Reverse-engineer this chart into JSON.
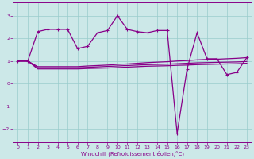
{
  "xlabel": "Windchill (Refroidissement éolien,°C)",
  "bg_color": "#cce8e8",
  "grid_color": "#99cccc",
  "line_color": "#880088",
  "xlim": [
    -0.5,
    23.5
  ],
  "ylim": [
    -2.6,
    3.6
  ],
  "yticks": [
    -2,
    -1,
    0,
    1,
    2,
    3
  ],
  "xticks": [
    0,
    1,
    2,
    3,
    4,
    5,
    6,
    7,
    8,
    9,
    10,
    11,
    12,
    13,
    14,
    15,
    16,
    17,
    18,
    19,
    20,
    21,
    22,
    23
  ],
  "series_smooth1": {
    "x": [
      0,
      1,
      2,
      3,
      4,
      5,
      6,
      7,
      8,
      9,
      10,
      11,
      12,
      13,
      14,
      15,
      16,
      17,
      18,
      19,
      20,
      21,
      22,
      23
    ],
    "y": [
      1.0,
      1.0,
      0.75,
      0.75,
      0.75,
      0.75,
      0.75,
      0.78,
      0.8,
      0.82,
      0.85,
      0.87,
      0.9,
      0.93,
      0.95,
      0.97,
      1.0,
      1.02,
      1.05,
      1.07,
      1.08,
      1.1,
      1.12,
      1.15
    ]
  },
  "series_smooth2": {
    "x": [
      0,
      1,
      2,
      3,
      4,
      5,
      6,
      7,
      8,
      9,
      10,
      11,
      12,
      13,
      14,
      15,
      16,
      17,
      18,
      19,
      20,
      21,
      22,
      23
    ],
    "y": [
      1.0,
      1.0,
      0.7,
      0.7,
      0.7,
      0.7,
      0.7,
      0.72,
      0.74,
      0.76,
      0.78,
      0.8,
      0.82,
      0.84,
      0.85,
      0.86,
      0.88,
      0.9,
      0.92,
      0.93,
      0.94,
      0.95,
      0.96,
      0.98
    ]
  },
  "series_smooth3": {
    "x": [
      0,
      1,
      2,
      3,
      4,
      5,
      6,
      7,
      8,
      9,
      10,
      11,
      12,
      13,
      14,
      15,
      16,
      17,
      18,
      19,
      20,
      21,
      22,
      23
    ],
    "y": [
      1.0,
      1.0,
      0.65,
      0.65,
      0.65,
      0.65,
      0.65,
      0.67,
      0.68,
      0.69,
      0.71,
      0.73,
      0.75,
      0.77,
      0.78,
      0.79,
      0.81,
      0.82,
      0.84,
      0.85,
      0.86,
      0.87,
      0.88,
      0.9
    ]
  },
  "series_main": {
    "x": [
      0,
      1,
      2,
      3,
      4,
      5,
      6,
      7,
      8,
      9,
      10,
      11,
      12,
      13,
      14,
      15,
      16,
      17,
      18,
      19,
      20,
      21,
      22,
      23
    ],
    "y": [
      1.0,
      1.0,
      2.3,
      2.4,
      2.4,
      2.4,
      1.55,
      1.65,
      2.25,
      2.35,
      3.0,
      2.4,
      2.3,
      2.25,
      2.35,
      2.35,
      -2.2,
      0.65,
      2.25,
      1.1,
      1.1,
      0.4,
      0.5,
      1.15
    ]
  }
}
